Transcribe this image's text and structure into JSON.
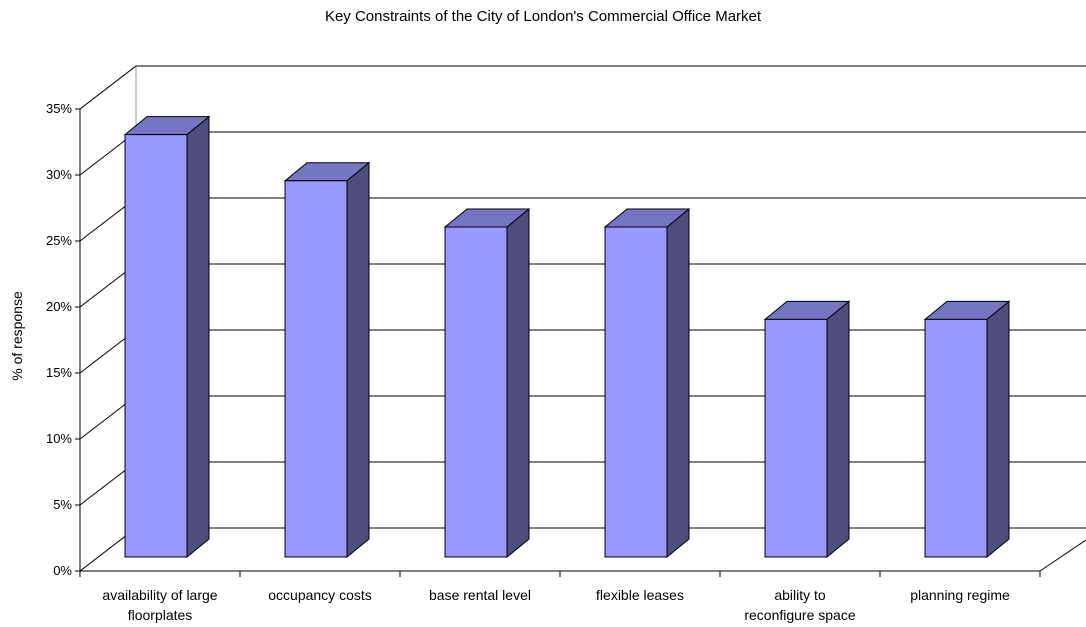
{
  "chart_data": {
    "type": "bar",
    "title": "Key Constraints of the City of London's Commercial Office Market",
    "xlabel": "",
    "ylabel": "% of response",
    "categories": [
      [
        "availability of large",
        "floorplates"
      ],
      [
        "occupancy costs"
      ],
      [
        "base rental level"
      ],
      [
        "flexible leases"
      ],
      [
        "ability to",
        "reconfigure space"
      ],
      [
        "planning regime"
      ]
    ],
    "values": [
      32,
      28.5,
      25,
      25,
      18,
      18
    ],
    "ylim": [
      0,
      35
    ],
    "yticks": [
      "0%",
      "5%",
      "10%",
      "15%",
      "20%",
      "25%",
      "30%",
      "35%"
    ],
    "grid": true,
    "colors": {
      "bar_front": "#9999ff",
      "bar_top": "#7575c4",
      "bar_side": "#4d4d80",
      "edge": "#000000"
    }
  }
}
